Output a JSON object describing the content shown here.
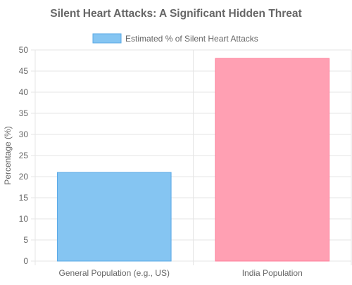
{
  "chart_data": {
    "type": "bar",
    "title": "Silent Heart Attacks: A Significant Hidden Threat",
    "xlabel": "",
    "ylabel": "Percentage (%)",
    "categories": [
      "General Population (e.g., US)",
      "India Population"
    ],
    "series": [
      {
        "name": "Estimated % of Silent Heart Attacks",
        "values": [
          21,
          48
        ]
      }
    ],
    "bar_colors": [
      "#85c5f2",
      "#ffa0b3"
    ],
    "bar_border_colors": [
      "#5aa9e6",
      "#ff7e99"
    ],
    "legend_swatch_color": "#85c5f2",
    "legend_swatch_border": "#5aa9e6",
    "ylim": [
      0,
      50
    ],
    "yticks": [
      0,
      5,
      10,
      15,
      20,
      25,
      30,
      35,
      40,
      45,
      50
    ],
    "grid": true,
    "legend_position": "top"
  }
}
